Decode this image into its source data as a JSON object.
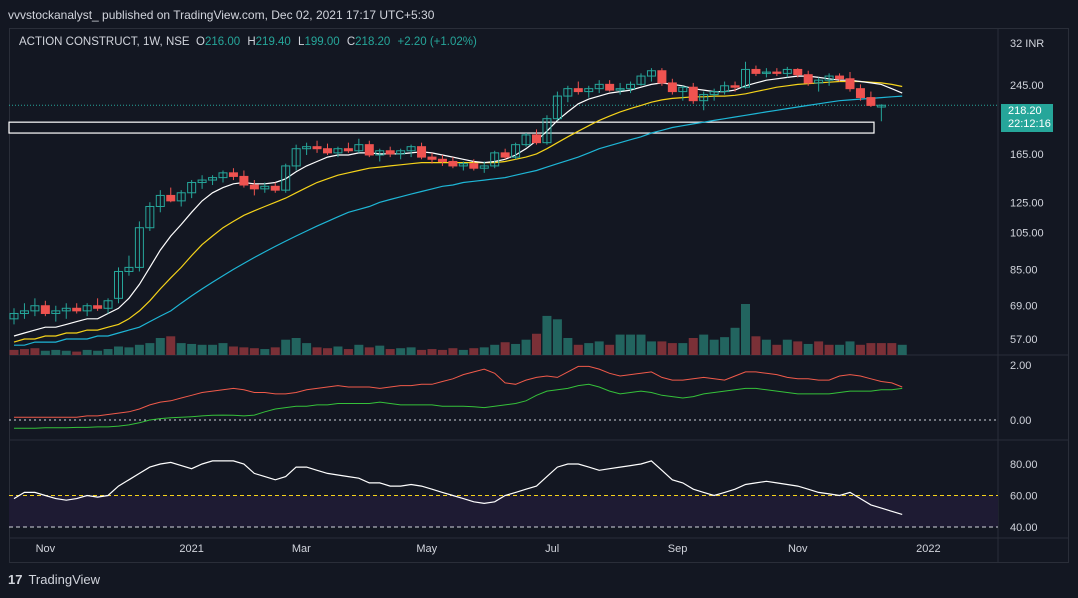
{
  "header": {
    "publish_line": "vvvstockanalyst_ published on TradingView.com, Dec 02, 2021 17:17 UTC+5:30"
  },
  "legend": {
    "symbol": "ACTION CONSTRUCT, 1W, NSE",
    "open_label": "O",
    "open": "216.00",
    "high_label": "H",
    "high": "219.40",
    "low_label": "L",
    "low": "199.00",
    "close_label": "C",
    "close": "218.20",
    "change": "+2.20 (+1.02%)"
  },
  "price_tag": {
    "price": "218.20",
    "countdown": "22:12:16"
  },
  "footer": {
    "brand": "TradingView",
    "logo_glyph": "17"
  },
  "colors": {
    "background": "#131722",
    "up": "#26a69a",
    "down": "#ef5350",
    "ma_fast": "#ffffff",
    "ma_mid": "#f5d31a",
    "ma_slow": "#1eb6d6",
    "osc_red": "#f05a4a",
    "osc_green": "#35c13a",
    "rsi": "#ffffff",
    "rsi_level": "#f5d31a"
  },
  "chart_data": {
    "type": "candlestick",
    "currency_label": "32 INR",
    "price_axis_ticks": [
      "245.00",
      "165.00",
      "125.00",
      "105.00",
      "85.00",
      "69.00",
      "57.00"
    ],
    "time_axis_ticks": [
      "Nov",
      "2021",
      "Mar",
      "May",
      "Jul",
      "Sep",
      "Nov",
      "2022"
    ],
    "candles": [
      {
        "o": 64,
        "h": 68,
        "l": 62,
        "c": 66
      },
      {
        "o": 66,
        "h": 70,
        "l": 64,
        "c": 67
      },
      {
        "o": 67,
        "h": 72,
        "l": 65,
        "c": 69
      },
      {
        "o": 69,
        "h": 71,
        "l": 65,
        "c": 66
      },
      {
        "o": 66,
        "h": 69,
        "l": 63,
        "c": 67
      },
      {
        "o": 67,
        "h": 70,
        "l": 64,
        "c": 68
      },
      {
        "o": 68,
        "h": 70,
        "l": 66,
        "c": 67
      },
      {
        "o": 67,
        "h": 70,
        "l": 65,
        "c": 69
      },
      {
        "o": 69,
        "h": 72,
        "l": 67,
        "c": 68
      },
      {
        "o": 68,
        "h": 72,
        "l": 66,
        "c": 71
      },
      {
        "o": 72,
        "h": 86,
        "l": 70,
        "c": 84
      },
      {
        "o": 84,
        "h": 92,
        "l": 82,
        "c": 86
      },
      {
        "o": 86,
        "h": 112,
        "l": 84,
        "c": 108
      },
      {
        "o": 108,
        "h": 125,
        "l": 106,
        "c": 122
      },
      {
        "o": 122,
        "h": 134,
        "l": 118,
        "c": 130
      },
      {
        "o": 130,
        "h": 136,
        "l": 125,
        "c": 126
      },
      {
        "o": 126,
        "h": 134,
        "l": 122,
        "c": 132
      },
      {
        "o": 132,
        "h": 142,
        "l": 128,
        "c": 140
      },
      {
        "o": 140,
        "h": 146,
        "l": 135,
        "c": 142
      },
      {
        "o": 142,
        "h": 146,
        "l": 138,
        "c": 144
      },
      {
        "o": 144,
        "h": 150,
        "l": 140,
        "c": 148
      },
      {
        "o": 148,
        "h": 152,
        "l": 142,
        "c": 145
      },
      {
        "o": 145,
        "h": 150,
        "l": 136,
        "c": 138
      },
      {
        "o": 138,
        "h": 142,
        "l": 130,
        "c": 135
      },
      {
        "o": 135,
        "h": 140,
        "l": 132,
        "c": 137
      },
      {
        "o": 137,
        "h": 140,
        "l": 132,
        "c": 134
      },
      {
        "o": 134,
        "h": 156,
        "l": 132,
        "c": 154
      },
      {
        "o": 154,
        "h": 174,
        "l": 150,
        "c": 170
      },
      {
        "o": 170,
        "h": 176,
        "l": 164,
        "c": 172
      },
      {
        "o": 172,
        "h": 178,
        "l": 166,
        "c": 170
      },
      {
        "o": 170,
        "h": 175,
        "l": 164,
        "c": 166
      },
      {
        "o": 166,
        "h": 172,
        "l": 162,
        "c": 170
      },
      {
        "o": 170,
        "h": 176,
        "l": 166,
        "c": 168
      },
      {
        "o": 168,
        "h": 180,
        "l": 166,
        "c": 174
      },
      {
        "o": 174,
        "h": 178,
        "l": 162,
        "c": 164
      },
      {
        "o": 164,
        "h": 170,
        "l": 158,
        "c": 168
      },
      {
        "o": 168,
        "h": 172,
        "l": 162,
        "c": 165
      },
      {
        "o": 165,
        "h": 170,
        "l": 160,
        "c": 168
      },
      {
        "o": 168,
        "h": 174,
        "l": 162,
        "c": 172
      },
      {
        "o": 172,
        "h": 176,
        "l": 160,
        "c": 162
      },
      {
        "o": 162,
        "h": 166,
        "l": 156,
        "c": 160
      },
      {
        "o": 160,
        "h": 164,
        "l": 154,
        "c": 158
      },
      {
        "o": 158,
        "h": 162,
        "l": 152,
        "c": 154
      },
      {
        "o": 154,
        "h": 158,
        "l": 150,
        "c": 156
      },
      {
        "o": 156,
        "h": 160,
        "l": 150,
        "c": 152
      },
      {
        "o": 152,
        "h": 158,
        "l": 148,
        "c": 154
      },
      {
        "o": 154,
        "h": 168,
        "l": 152,
        "c": 166
      },
      {
        "o": 166,
        "h": 170,
        "l": 160,
        "c": 162
      },
      {
        "o": 162,
        "h": 176,
        "l": 160,
        "c": 174
      },
      {
        "o": 174,
        "h": 186,
        "l": 172,
        "c": 184
      },
      {
        "o": 184,
        "h": 190,
        "l": 174,
        "c": 176
      },
      {
        "o": 176,
        "h": 206,
        "l": 174,
        "c": 202
      },
      {
        "o": 202,
        "h": 236,
        "l": 200,
        "c": 230
      },
      {
        "o": 230,
        "h": 244,
        "l": 222,
        "c": 240
      },
      {
        "o": 240,
        "h": 250,
        "l": 232,
        "c": 236
      },
      {
        "o": 236,
        "h": 244,
        "l": 228,
        "c": 240
      },
      {
        "o": 240,
        "h": 252,
        "l": 234,
        "c": 246
      },
      {
        "o": 246,
        "h": 252,
        "l": 236,
        "c": 238
      },
      {
        "o": 238,
        "h": 248,
        "l": 232,
        "c": 240
      },
      {
        "o": 240,
        "h": 250,
        "l": 234,
        "c": 246
      },
      {
        "o": 246,
        "h": 262,
        "l": 244,
        "c": 258
      },
      {
        "o": 258,
        "h": 270,
        "l": 250,
        "c": 266
      },
      {
        "o": 266,
        "h": 270,
        "l": 244,
        "c": 248
      },
      {
        "o": 248,
        "h": 254,
        "l": 232,
        "c": 236
      },
      {
        "o": 236,
        "h": 244,
        "l": 224,
        "c": 242
      },
      {
        "o": 242,
        "h": 248,
        "l": 220,
        "c": 224
      },
      {
        "o": 224,
        "h": 236,
        "l": 212,
        "c": 232
      },
      {
        "o": 232,
        "h": 240,
        "l": 224,
        "c": 236
      },
      {
        "o": 236,
        "h": 250,
        "l": 232,
        "c": 244
      },
      {
        "o": 244,
        "h": 250,
        "l": 236,
        "c": 242
      },
      {
        "o": 242,
        "h": 280,
        "l": 240,
        "c": 268
      },
      {
        "o": 268,
        "h": 274,
        "l": 258,
        "c": 262
      },
      {
        "o": 262,
        "h": 270,
        "l": 256,
        "c": 264
      },
      {
        "o": 264,
        "h": 270,
        "l": 258,
        "c": 262
      },
      {
        "o": 262,
        "h": 272,
        "l": 256,
        "c": 268
      },
      {
        "o": 268,
        "h": 270,
        "l": 256,
        "c": 260
      },
      {
        "o": 260,
        "h": 266,
        "l": 244,
        "c": 248
      },
      {
        "o": 248,
        "h": 256,
        "l": 236,
        "c": 252
      },
      {
        "o": 252,
        "h": 262,
        "l": 244,
        "c": 258
      },
      {
        "o": 258,
        "h": 262,
        "l": 250,
        "c": 254
      },
      {
        "o": 254,
        "h": 264,
        "l": 236,
        "c": 240
      },
      {
        "o": 240,
        "h": 246,
        "l": 224,
        "c": 228
      },
      {
        "o": 228,
        "h": 236,
        "l": 216,
        "c": 218
      },
      {
        "o": 216,
        "h": 219.4,
        "l": 199,
        "c": 218.2
      }
    ],
    "volume_up": [
      false,
      false,
      false,
      true,
      true,
      true,
      false,
      true,
      true,
      true,
      true,
      true,
      true,
      true,
      true,
      false,
      true,
      true,
      true,
      true,
      true,
      false,
      false,
      false,
      true,
      false,
      true,
      true,
      true,
      false,
      false,
      true,
      false,
      true,
      false,
      true,
      false,
      true,
      true,
      false,
      false,
      false,
      false,
      true,
      false,
      true,
      true,
      false,
      true,
      true,
      false,
      true,
      true,
      true,
      false,
      true,
      true,
      false,
      true,
      true,
      true,
      true,
      false,
      false,
      true,
      false,
      true,
      true,
      true,
      true,
      true,
      false,
      true,
      false,
      true,
      false,
      true,
      false,
      false,
      true,
      true,
      false,
      false,
      false,
      false,
      true
    ],
    "volume": [
      6,
      7,
      8,
      5,
      6,
      5,
      4,
      6,
      5,
      7,
      10,
      9,
      12,
      14,
      20,
      22,
      14,
      13,
      12,
      12,
      14,
      10,
      9,
      8,
      7,
      9,
      18,
      20,
      14,
      9,
      8,
      10,
      7,
      12,
      9,
      11,
      7,
      8,
      9,
      6,
      7,
      6,
      8,
      6,
      8,
      9,
      12,
      15,
      13,
      18,
      25,
      46,
      42,
      20,
      12,
      14,
      16,
      12,
      24,
      24,
      24,
      16,
      16,
      14,
      14,
      20,
      24,
      18,
      21,
      32,
      60,
      22,
      18,
      12,
      18,
      16,
      13,
      16,
      12,
      12,
      16,
      12,
      14,
      14,
      14,
      12
    ],
    "volume_axis_max": 100,
    "ma_fast": [
      58,
      59,
      60,
      61,
      61,
      62,
      63,
      64,
      64,
      66,
      68,
      72,
      78,
      86,
      95,
      103,
      110,
      118,
      126,
      132,
      136,
      139,
      140,
      139,
      139,
      140,
      143,
      149,
      154,
      158,
      162,
      164,
      164,
      166,
      166,
      165,
      165,
      165,
      166,
      167,
      166,
      164,
      162,
      160,
      158,
      157,
      158,
      160,
      164,
      170,
      178,
      188,
      200,
      210,
      220,
      226,
      230,
      234,
      236,
      238,
      242,
      246,
      248,
      246,
      244,
      240,
      238,
      236,
      236,
      238,
      244,
      248,
      252,
      254,
      256,
      258,
      258,
      256,
      254,
      252,
      252,
      250,
      248,
      246,
      240,
      234
    ],
    "ma_mid": [
      56,
      57,
      57,
      58,
      58,
      59,
      59,
      60,
      60,
      61,
      62,
      64,
      67,
      71,
      76,
      81,
      86,
      92,
      98,
      103,
      108,
      112,
      116,
      119,
      122,
      125,
      128,
      132,
      136,
      140,
      143,
      146,
      148,
      150,
      152,
      153,
      154,
      155,
      156,
      157,
      157,
      157,
      157,
      157,
      157,
      157,
      157,
      158,
      160,
      162,
      165,
      170,
      176,
      182,
      188,
      194,
      200,
      205,
      210,
      214,
      218,
      222,
      225,
      227,
      228,
      229,
      229,
      230,
      230,
      231,
      233,
      236,
      239,
      242,
      244,
      246,
      247,
      248,
      249,
      250,
      250,
      250,
      249,
      248,
      246,
      243
    ],
    "ma_slow": [
      55,
      55,
      56,
      56,
      56,
      57,
      57,
      57,
      58,
      58,
      59,
      60,
      61,
      63,
      65,
      67,
      70,
      73,
      76,
      79,
      82,
      85,
      88,
      91,
      94,
      97,
      100,
      103,
      106,
      109,
      112,
      115,
      118,
      120,
      122,
      125,
      127,
      129,
      131,
      133,
      135,
      137,
      138,
      140,
      141,
      142,
      143,
      144,
      146,
      148,
      150,
      153,
      156,
      159,
      162,
      166,
      170,
      173,
      176,
      179,
      182,
      186,
      189,
      192,
      194,
      196,
      198,
      200,
      202,
      204,
      206,
      208,
      210,
      212,
      214,
      216,
      218,
      220,
      222,
      224,
      225,
      226,
      227,
      228,
      229,
      230
    ],
    "osc_axis": [
      "2.00",
      "0.00"
    ],
    "osc_red": [
      0.1,
      0.1,
      0.1,
      0.1,
      0.1,
      0.1,
      0.1,
      0.15,
      0.15,
      0.2,
      0.25,
      0.3,
      0.4,
      0.55,
      0.65,
      0.7,
      0.8,
      0.9,
      1.0,
      1.05,
      1.1,
      1.15,
      1.1,
      1.0,
      1.0,
      0.95,
      0.95,
      1.0,
      1.1,
      1.15,
      1.2,
      1.25,
      1.2,
      1.2,
      1.2,
      1.15,
      1.2,
      1.25,
      1.25,
      1.3,
      1.3,
      1.4,
      1.5,
      1.65,
      1.75,
      1.85,
      1.7,
      1.35,
      1.3,
      1.45,
      1.55,
      1.6,
      1.55,
      1.75,
      1.95,
      1.95,
      1.85,
      1.7,
      1.6,
      1.65,
      1.7,
      1.75,
      1.55,
      1.45,
      1.45,
      1.5,
      1.55,
      1.5,
      1.45,
      1.6,
      1.75,
      1.75,
      1.7,
      1.65,
      1.55,
      1.5,
      1.5,
      1.45,
      1.45,
      1.6,
      1.65,
      1.6,
      1.5,
      1.4,
      1.35,
      1.2
    ],
    "osc_green": [
      -0.3,
      -0.3,
      -0.3,
      -0.28,
      -0.28,
      -0.28,
      -0.27,
      -0.27,
      -0.25,
      -0.25,
      -0.22,
      -0.18,
      -0.1,
      0.0,
      0.05,
      0.08,
      0.1,
      0.12,
      0.15,
      0.17,
      0.18,
      0.17,
      0.15,
      0.18,
      0.3,
      0.4,
      0.45,
      0.5,
      0.5,
      0.55,
      0.55,
      0.6,
      0.6,
      0.6,
      0.6,
      0.65,
      0.6,
      0.55,
      0.55,
      0.55,
      0.55,
      0.5,
      0.5,
      0.5,
      0.48,
      0.45,
      0.5,
      0.55,
      0.6,
      0.7,
      0.9,
      1.05,
      1.1,
      1.15,
      1.25,
      1.3,
      1.2,
      1.05,
      0.95,
      1.0,
      1.05,
      1.0,
      0.9,
      0.85,
      0.8,
      0.85,
      0.95,
      1.0,
      1.05,
      1.1,
      1.15,
      1.15,
      1.1,
      1.05,
      1.0,
      0.95,
      0.95,
      0.95,
      0.95,
      1.0,
      1.05,
      1.05,
      1.05,
      1.1,
      1.1,
      1.15
    ],
    "rsi_axis": [
      "80.00",
      "60.00",
      "40.00"
    ],
    "rsi_level": 60,
    "rsi_lower": 40,
    "rsi": [
      58,
      62,
      62,
      60,
      58,
      57,
      58,
      60,
      59,
      60,
      66,
      70,
      74,
      78,
      80,
      81,
      79,
      77,
      80,
      82,
      82,
      82,
      80,
      74,
      72,
      70,
      72,
      78,
      78,
      76,
      74,
      73,
      72,
      71,
      68,
      68,
      66,
      66,
      67,
      66,
      64,
      62,
      60,
      58,
      56,
      55,
      56,
      60,
      62,
      64,
      66,
      72,
      78,
      80,
      80,
      78,
      76,
      77,
      78,
      79,
      80,
      82,
      76,
      70,
      68,
      64,
      62,
      60,
      62,
      64,
      67,
      68,
      69,
      68,
      67,
      66,
      64,
      62,
      61,
      60,
      62,
      58,
      54,
      52,
      50,
      48
    ]
  }
}
